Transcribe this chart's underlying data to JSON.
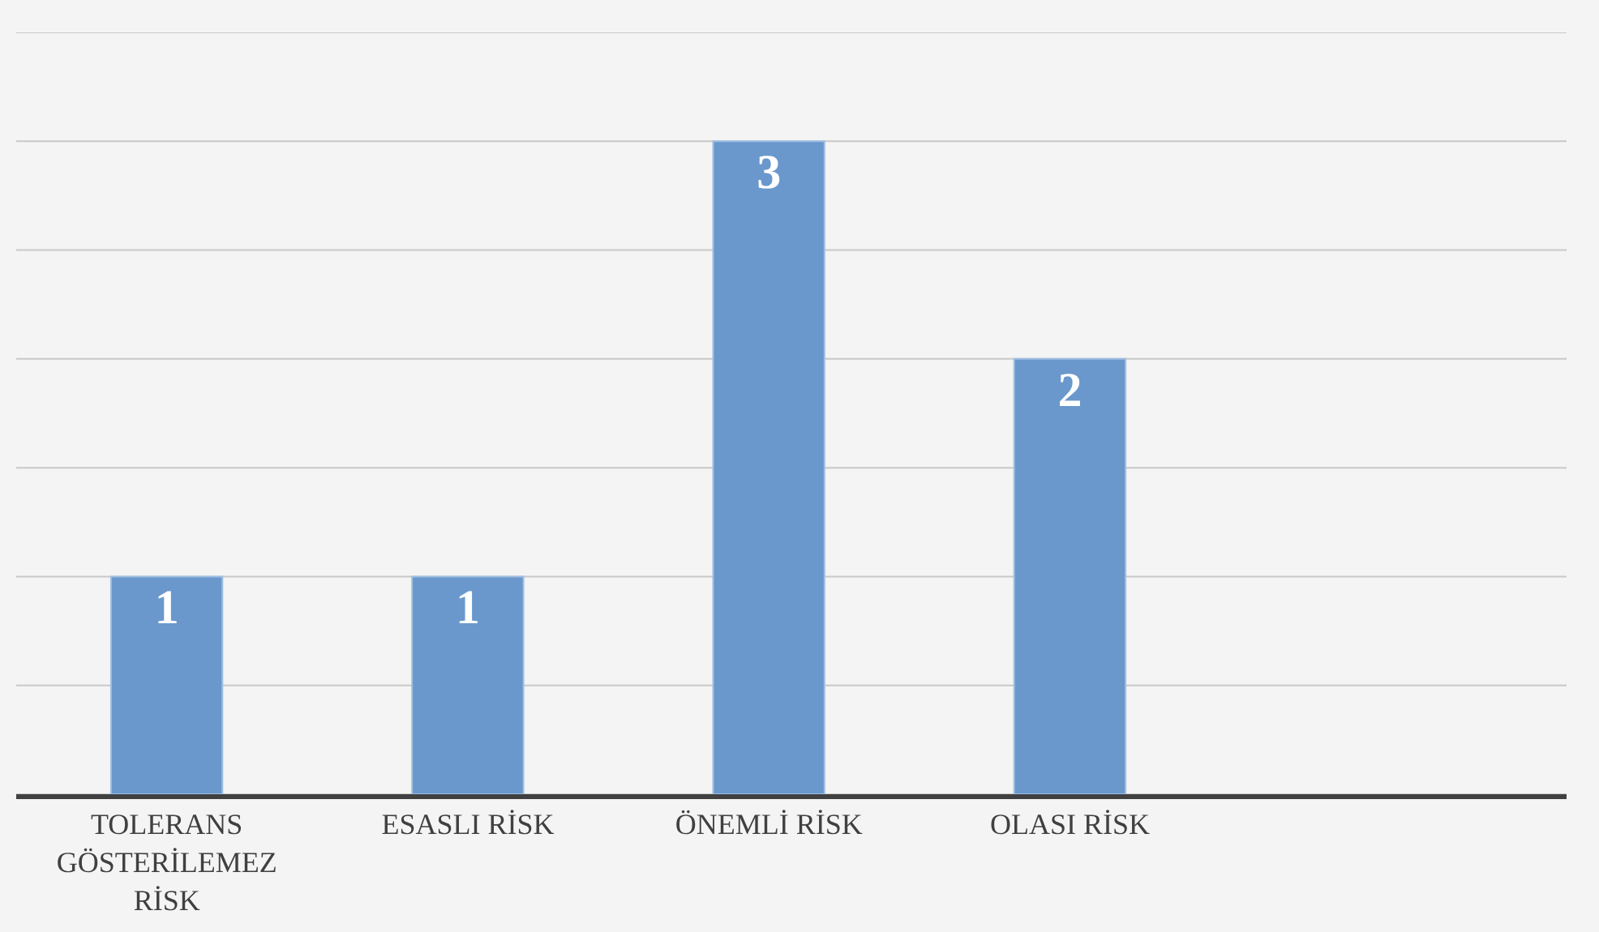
{
  "chart_data": {
    "type": "bar",
    "categories": [
      "TOLERANS GÖSTERİLEMEZ RİSK",
      "ESASLI RİSK",
      "ÖNEMLİ RİSK",
      "OLASI RİSK",
      null
    ],
    "values": [
      1,
      1,
      3,
      2,
      null
    ],
    "color": "#6a98cc",
    "ylim": [
      0,
      3.5
    ],
    "yticks": [
      {
        "value": 0,
        "label": null
      },
      {
        "value": 0.5,
        "label": null
      },
      {
        "value": 1,
        "label": null
      },
      {
        "value": 1.5,
        "label": null
      },
      {
        "value": 2,
        "label": null
      },
      {
        "value": 2.5,
        "label": null
      },
      {
        "value": 3,
        "label": null
      },
      {
        "value": 3.5,
        "label": null
      }
    ],
    "grid": "y",
    "tick_labels": "x",
    "data_labels": true
  }
}
